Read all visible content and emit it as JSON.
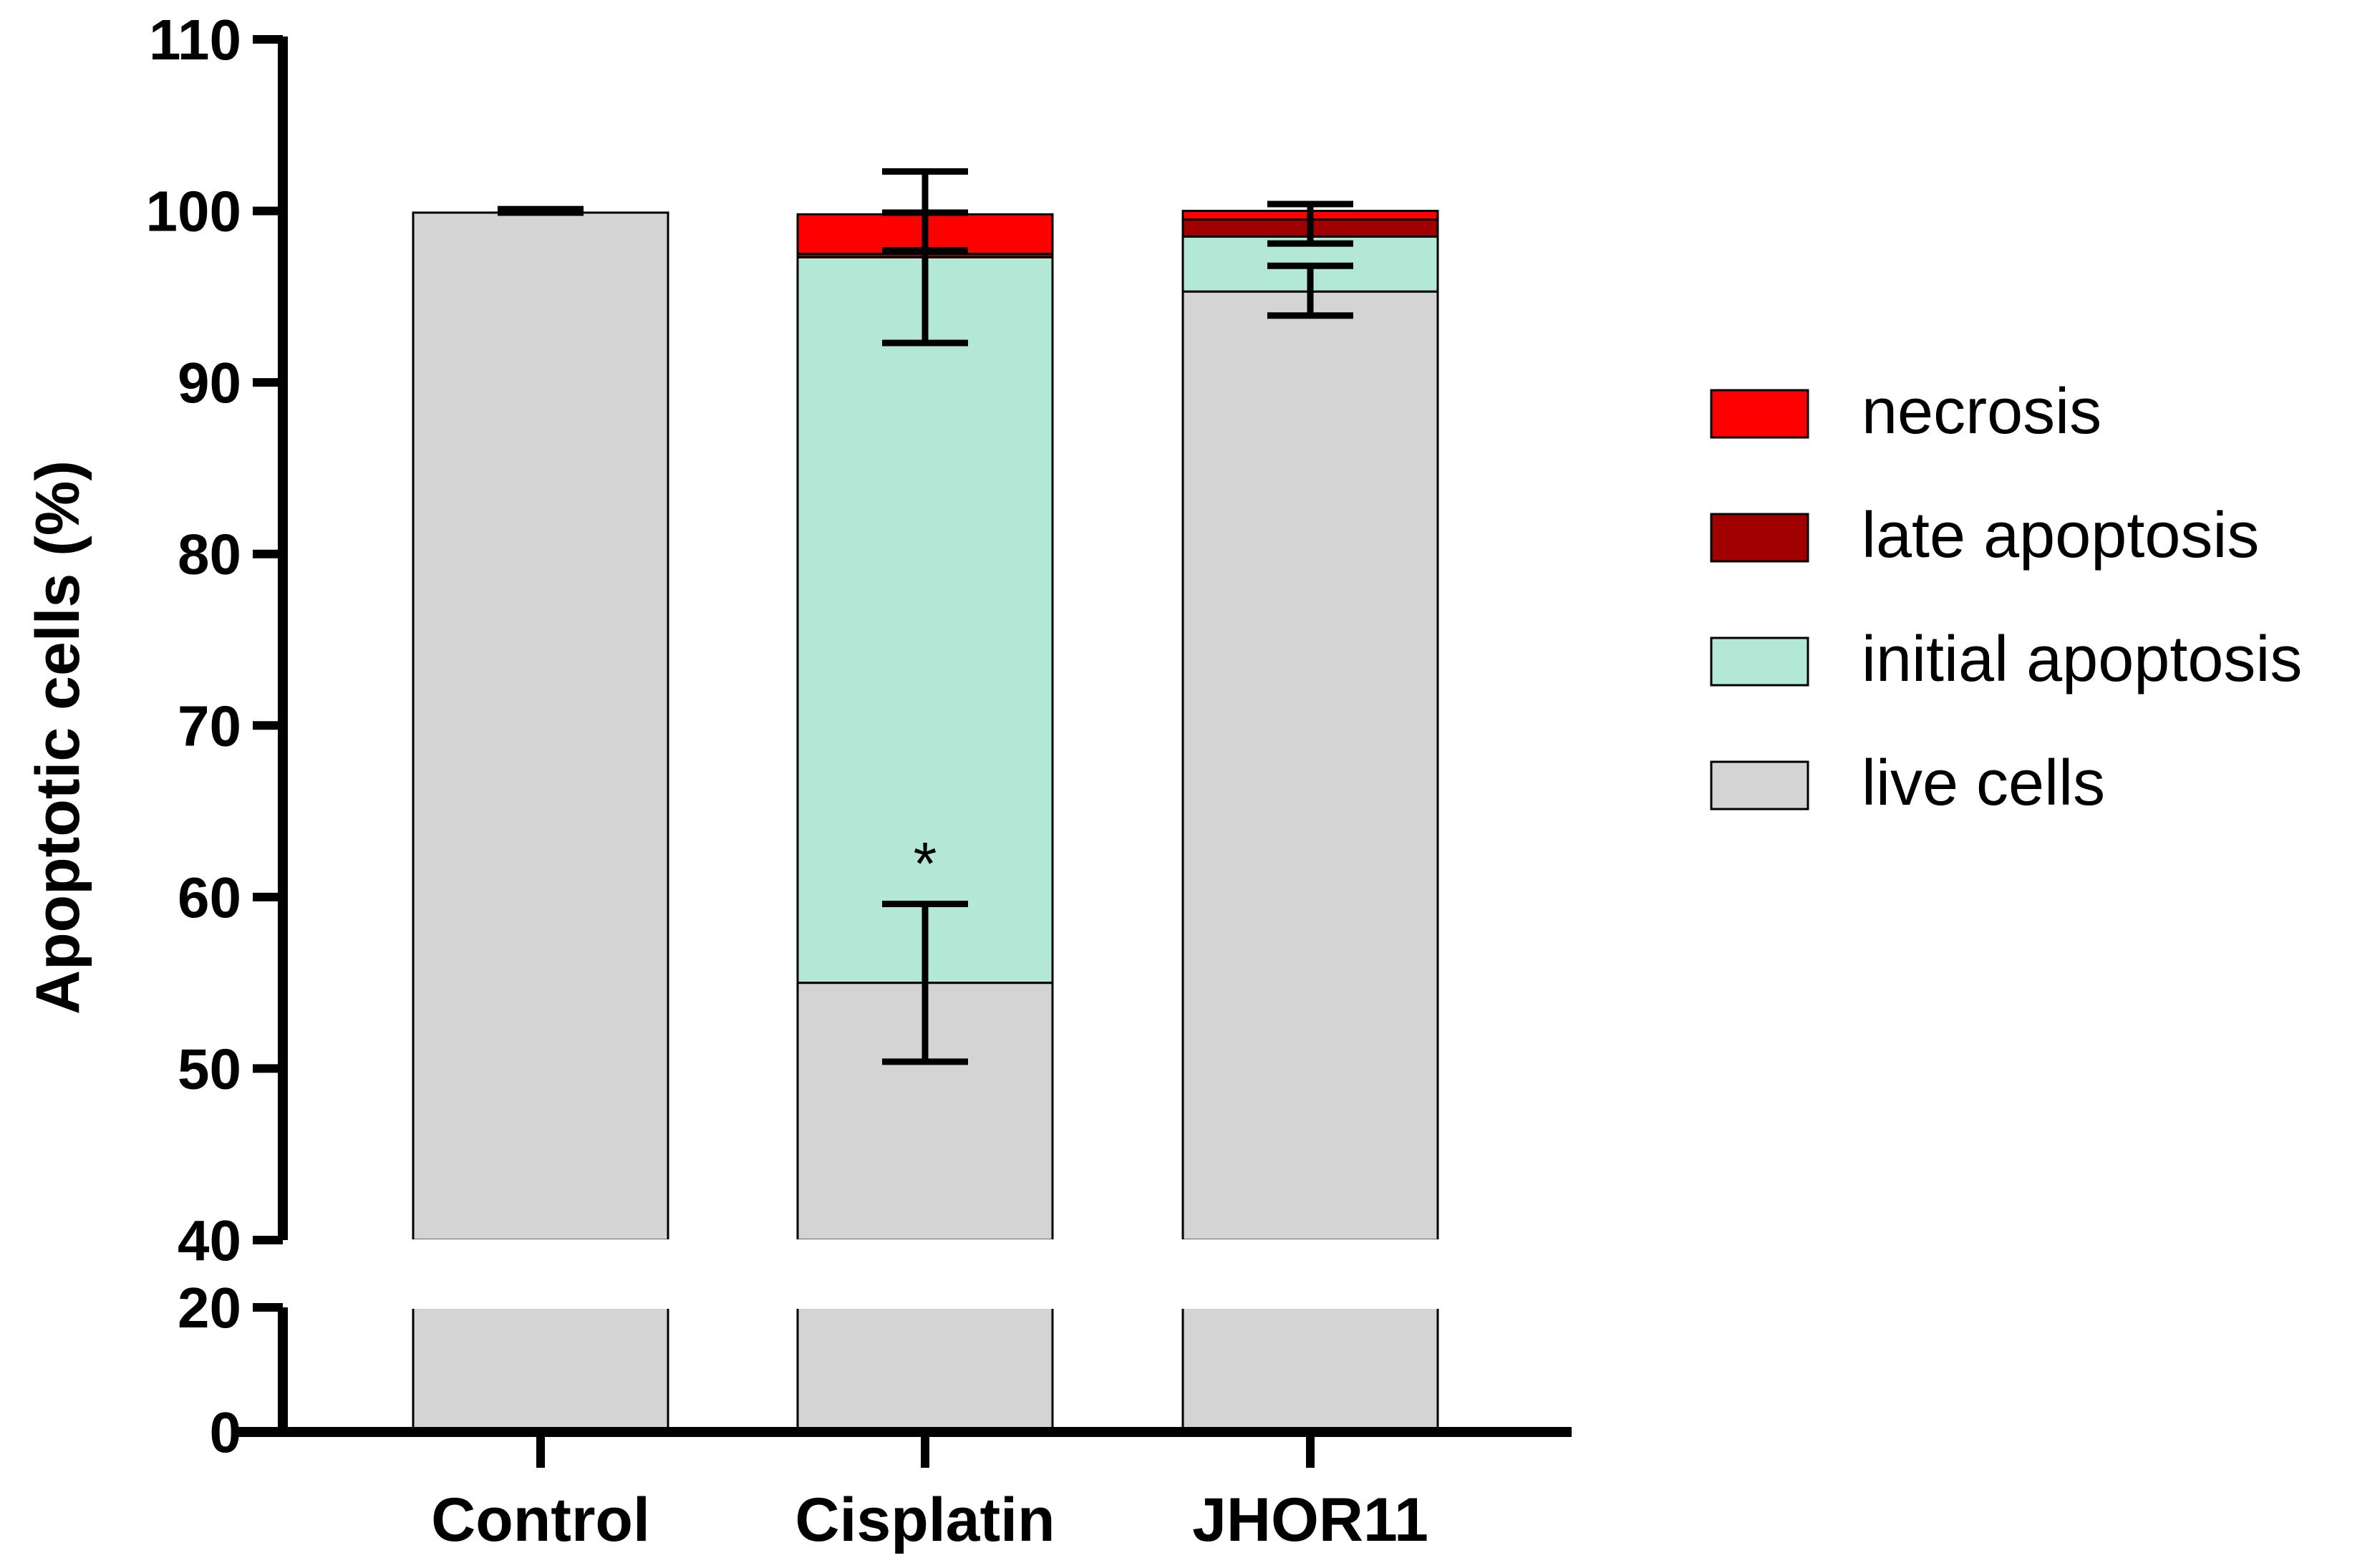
{
  "chart_data": {
    "type": "bar",
    "stacked": true,
    "title": "",
    "xlabel": "",
    "ylabel": "Apoptotic cells (%)",
    "broken_axis": true,
    "lower_segment": {
      "ylim": [
        0,
        20
      ],
      "ticks": [
        "0",
        "20"
      ]
    },
    "upper_segment": {
      "ylim": [
        40,
        110
      ],
      "ticks": [
        "40",
        "50",
        "60",
        "70",
        "80",
        "90",
        "100",
        "110"
      ]
    },
    "categories": [
      "Control",
      "Cisplatin",
      "JHOR11"
    ],
    "series": [
      {
        "name": "live cells",
        "color": "#d4d4d4",
        "values": [
          99.9,
          55.0,
          95.3
        ]
      },
      {
        "name": "initial apoptosis",
        "color": "#b3e8d6",
        "values": [
          0.0,
          42.3,
          3.2
        ]
      },
      {
        "name": "late apoptosis",
        "color": "#a00000",
        "values": [
          0.0,
          0.2,
          1.0
        ]
      },
      {
        "name": "necrosis",
        "color": "#ff0000",
        "values": [
          0.0,
          2.3,
          0.5
        ]
      }
    ],
    "error_bars": [
      {
        "category": "Control",
        "center": 100.0,
        "low": 99.9,
        "high": 100.1
      },
      {
        "category": "Cisplatin",
        "center": 97.3,
        "low": 92.3,
        "high": 102.3
      },
      {
        "category": "Cisplatin",
        "center": 98.8,
        "low": 97.7,
        "high": 99.9
      },
      {
        "category": "Cisplatin",
        "center": 55.0,
        "low": 50.4,
        "high": 59.6
      },
      {
        "category": "JHOR11",
        "center": 99.3,
        "low": 98.1,
        "high": 100.4
      },
      {
        "category": "JHOR11",
        "center": 95.3,
        "low": 93.9,
        "high": 96.8
      }
    ],
    "annotations": [
      {
        "category": "Cisplatin",
        "text": "*",
        "y": 62.0
      }
    ],
    "legend": {
      "position": "right",
      "entries": [
        "necrosis",
        "late apoptosis",
        "initial apoptosis",
        "live cells"
      ]
    }
  }
}
